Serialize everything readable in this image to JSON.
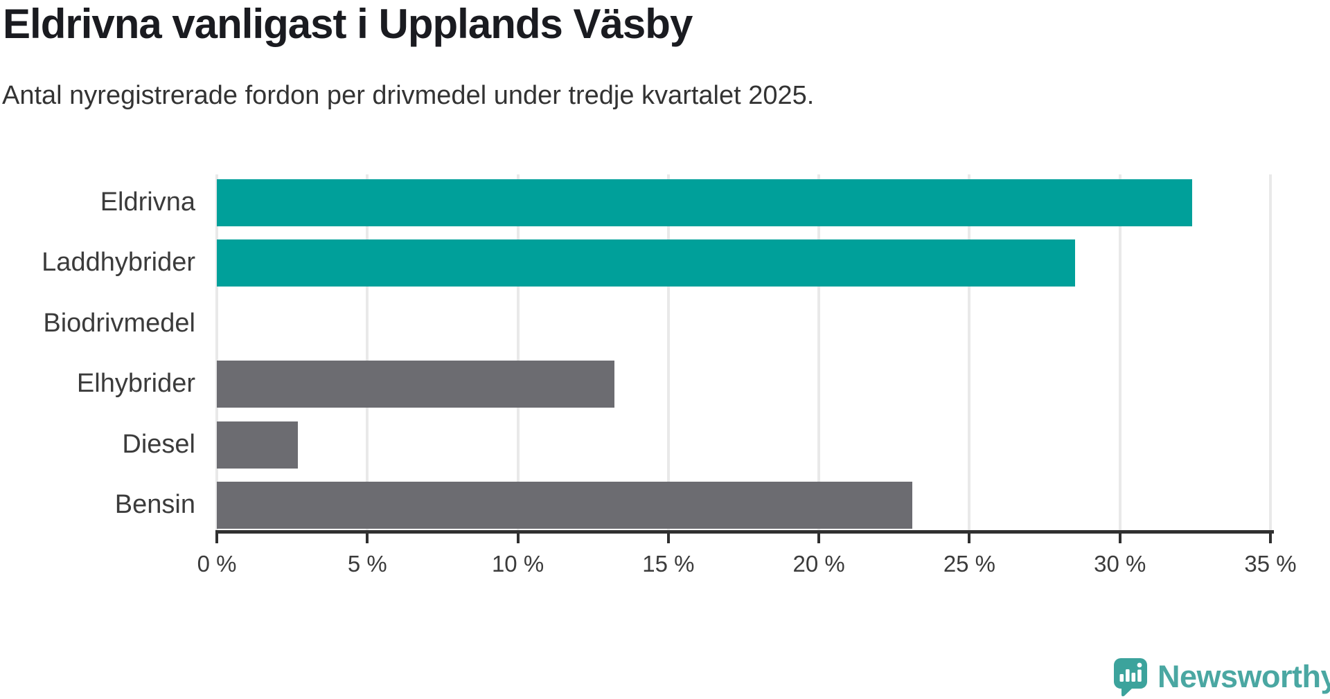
{
  "title": "Eldrivna vanligast i Upplands Väsby",
  "subtitle": "Antal nyregistrerade fordon per drivmedel under tredje kvartalet 2025.",
  "colors": {
    "teal": "#00a09a",
    "gray": "#6c6c71",
    "axis": "#303030",
    "grid": "#e9e9e9",
    "text": "#3b3b3b",
    "title": "#1a1b20",
    "logo_teal": "#4aa7a2",
    "logo_icon": "#3ca39c"
  },
  "chart_data": {
    "type": "bar",
    "orientation": "horizontal",
    "title": "Eldrivna vanligast i Upplands Väsby",
    "subtitle": "Antal nyregistrerade fordon per drivmedel under tredje kvartalet 2025.",
    "categories": [
      "Eldrivna",
      "Laddhybrider",
      "Biodrivmedel",
      "Elhybrider",
      "Diesel",
      "Bensin"
    ],
    "values": [
      32.4,
      28.5,
      0,
      13.2,
      2.7,
      23.1
    ],
    "unit": "%",
    "bar_colors": [
      "teal",
      "teal",
      "teal",
      "gray",
      "gray",
      "gray"
    ],
    "xlim": [
      0,
      35
    ],
    "tick_step": 5,
    "x_ticks": [
      "0 %",
      "5 %",
      "10 %",
      "15 %",
      "20 %",
      "25 %",
      "30 %",
      "35 %"
    ],
    "grid": true,
    "legend": false
  },
  "logo": {
    "text": "Newsworthy",
    "icon": "bar-chart-speech-bubble-icon"
  }
}
